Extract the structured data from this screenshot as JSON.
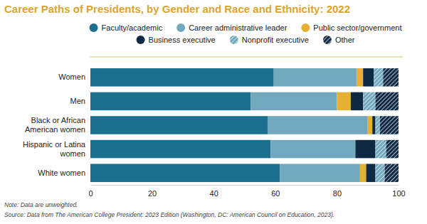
{
  "chart_data": {
    "type": "bar",
    "orientation": "horizontal",
    "stacked": true,
    "title": "Career Paths of Presidents, by Gender and Race and Ethnicity: 2022",
    "note": "Note: Data are unweighted.",
    "source": "Source: Data from The American College President: 2023 Edition (Washington, DC: American Council on Education, 2023).",
    "categories": [
      "Women",
      "Men",
      "Black or African American women",
      "Hispanic or Latina women",
      "White women"
    ],
    "series": [
      {
        "name": "Faculty/academic",
        "color": "#1b6f8f",
        "values": [
          59.5,
          52,
          57.5,
          58.5,
          61.5
        ]
      },
      {
        "name": "Career administrative leader",
        "color": "#72a9be",
        "values": [
          27,
          28,
          32.5,
          27.5,
          26
        ]
      },
      {
        "name": "Public sector/government",
        "color": "#e6b034",
        "values": [
          2,
          4.5,
          1.5,
          0,
          2
        ]
      },
      {
        "name": "Business executive",
        "color": "#102a45",
        "values": [
          3.5,
          4,
          1,
          6.5,
          3
        ]
      },
      {
        "name": "Nonprofit executive",
        "color": "#72a9be",
        "marker": "hatch",
        "values": [
          3,
          4,
          1.5,
          3.5,
          3
        ]
      },
      {
        "name": "Other",
        "color": "#102a45",
        "marker": "hatch",
        "values": [
          5,
          7.5,
          6,
          4,
          4.5
        ]
      }
    ],
    "xlim": [
      0,
      100
    ],
    "xticks": [
      0,
      20,
      40,
      60,
      80,
      100
    ],
    "grid": false,
    "legend": "top"
  }
}
